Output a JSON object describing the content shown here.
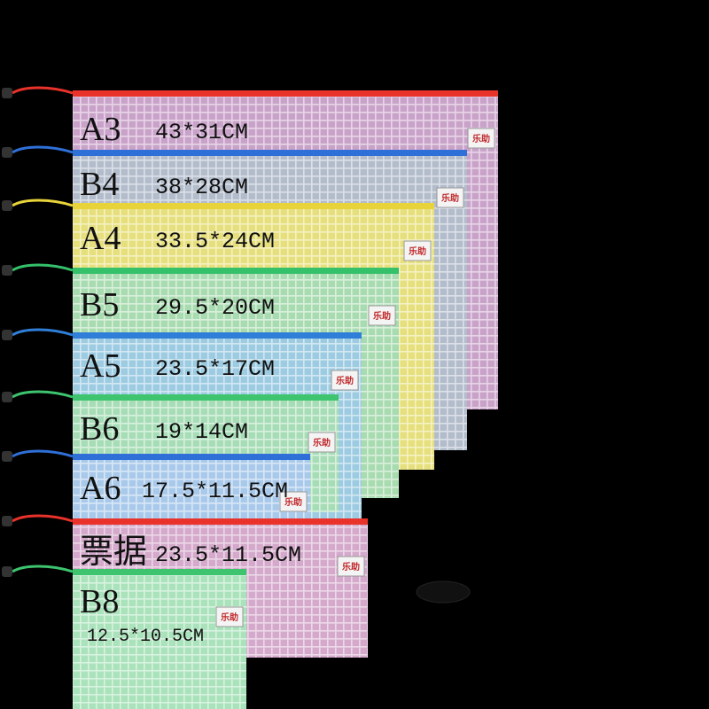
{
  "brand": "乐助",
  "bags": [
    {
      "size": "A3",
      "dims": "43*31CM",
      "color": "#c9a2c9",
      "zipper": "#e8322a"
    },
    {
      "size": "B4",
      "dims": "38*28CM",
      "color": "#b2bccb",
      "zipper": "#2f6fd8"
    },
    {
      "size": "A4",
      "dims": "33.5*24CM",
      "color": "#e6df7c",
      "zipper": "#e8d43a"
    },
    {
      "size": "B5",
      "dims": "29.5*20CM",
      "color": "#a9dbb0",
      "zipper": "#35c06a"
    },
    {
      "size": "A5",
      "dims": "23.5*17CM",
      "color": "#9ccbe2",
      "zipper": "#2f7fd8"
    },
    {
      "size": "B6",
      "dims": "19*14CM",
      "color": "#a7ddb6",
      "zipper": "#3ec46e"
    },
    {
      "size": "A6",
      "dims": "17.5*11.5CM",
      "color": "#a9c9ea",
      "zipper": "#2f6fd8"
    },
    {
      "size": "票据",
      "dims": "23.5*11.5CM",
      "color": "#d4a9cb",
      "zipper": "#e8322a"
    },
    {
      "size": "B8",
      "dims": "12.5*10.5CM",
      "color": "#a9e2bb",
      "zipper": "#3ec46e"
    }
  ]
}
